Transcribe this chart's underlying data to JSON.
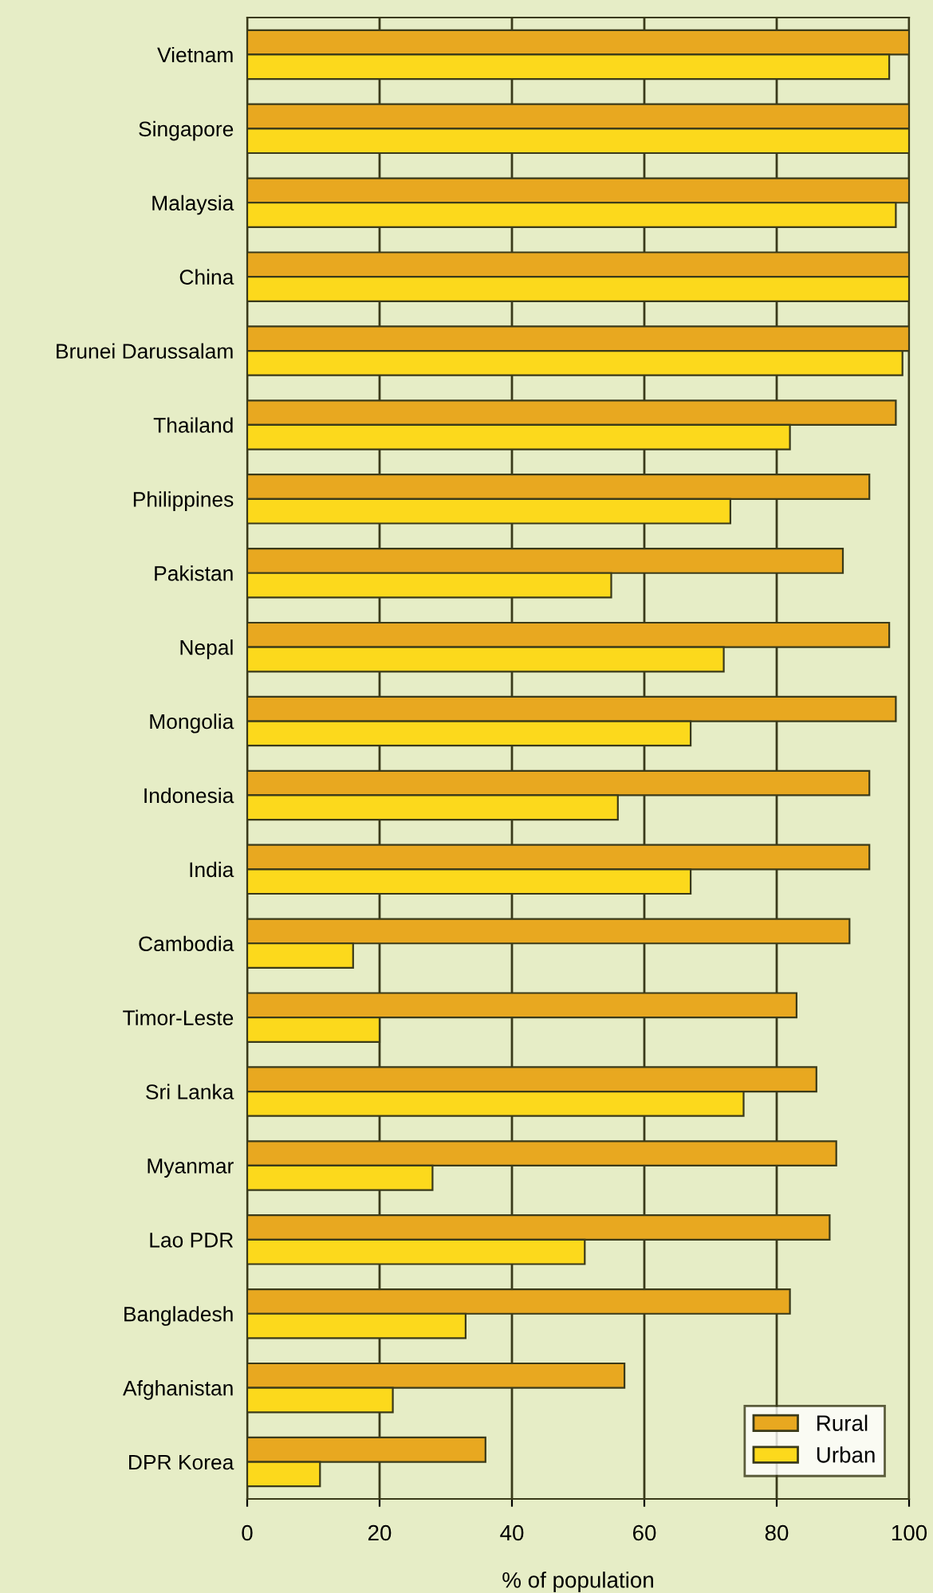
{
  "chart_data": {
    "type": "bar",
    "orientation": "horizontal",
    "xlabel": "% of population",
    "categories": [
      "Vietnam",
      "Singapore",
      "Malaysia",
      "China",
      "Brunei Darussalam",
      "Thailand",
      "Philippines",
      "Pakistan",
      "Nepal",
      "Mongolia",
      "Indonesia",
      "India",
      "Cambodia",
      "Timor-Leste",
      "Sri Lanka",
      "Myanmar",
      "Lao PDR",
      "Bangladesh",
      "Afghanistan",
      "DPR Korea"
    ],
    "series": [
      {
        "name": "Rural",
        "color": "#e8a820",
        "values": [
          100,
          100,
          100,
          100,
          100,
          98,
          94,
          90,
          97,
          98,
          94,
          94,
          91,
          83,
          86,
          89,
          88,
          82,
          57,
          36
        ]
      },
      {
        "name": "Urban",
        "color": "#fcd91c",
        "values": [
          97,
          100,
          98,
          100,
          99,
          82,
          73,
          55,
          72,
          67,
          56,
          67,
          16,
          20,
          75,
          28,
          51,
          33,
          22,
          11
        ]
      }
    ],
    "xlim": [
      0,
      100
    ],
    "xticks": [
      0,
      20,
      40,
      60,
      80,
      100
    ],
    "grid": "x",
    "legend": "bottom right"
  }
}
